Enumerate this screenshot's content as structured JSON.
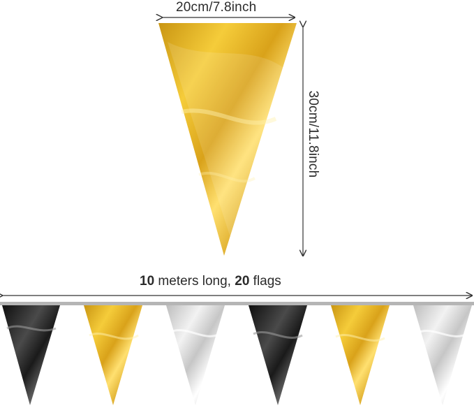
{
  "dimensions": {
    "width_text": "20cm/7.8inch",
    "height_text": "30cm/11.8inch"
  },
  "banner": {
    "length_number": "10",
    "length_text": " meters long, ",
    "flags_number": "20",
    "flags_text": " flags"
  },
  "colors": {
    "gold": "#e8b020",
    "silver": "#d8d8d8",
    "black": "#1c1c1c",
    "string": "#b5b5b5",
    "arrow": "#333333"
  },
  "flag_sequence": [
    "black",
    "gold",
    "silver",
    "black",
    "gold",
    "silver"
  ]
}
